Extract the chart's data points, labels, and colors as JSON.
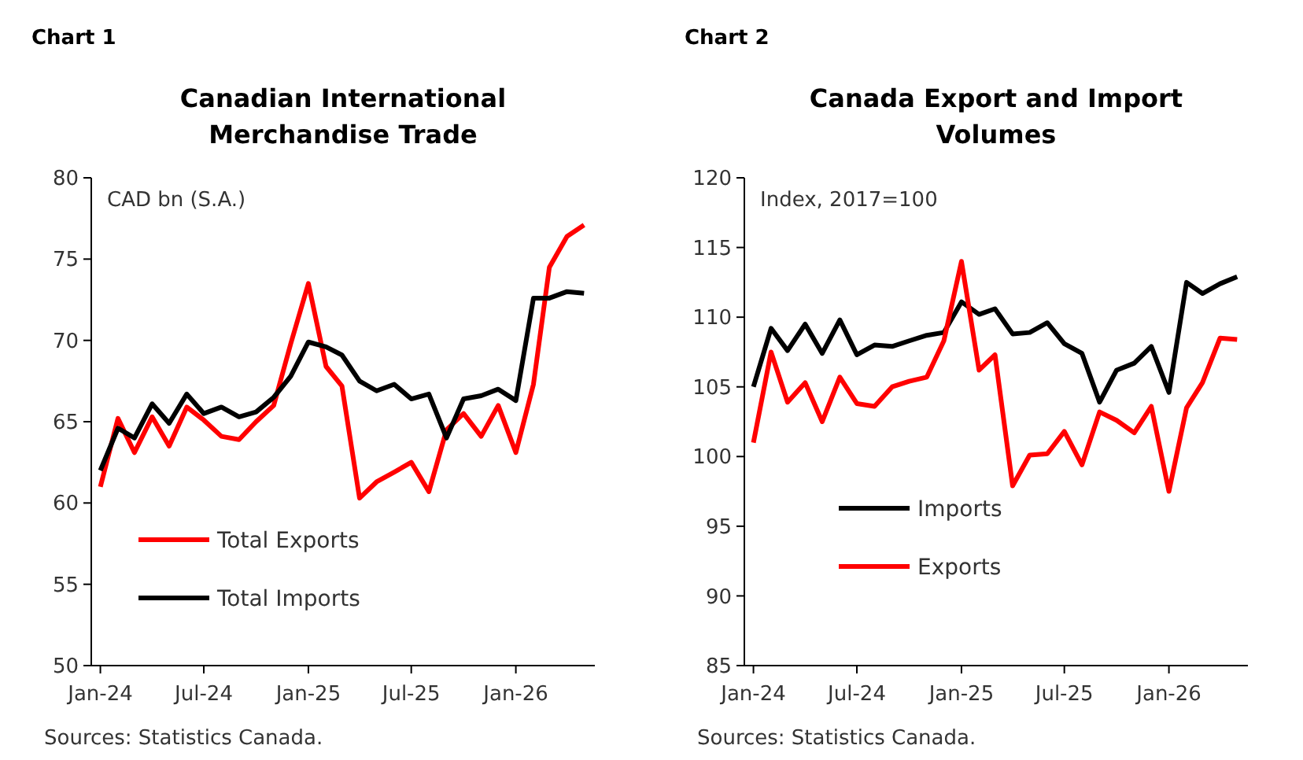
{
  "chart_data": [
    {
      "type": "line",
      "title": "Canadian International Merchandise Trade",
      "ylabel": "CAD bn (S.A.)",
      "annotations": [
        "Chart 1",
        "Sources: Statistics Canada."
      ],
      "x": [
        "2024-01",
        "2024-02",
        "2024-03",
        "2024-04",
        "2024-05",
        "2024-06",
        "2024-07",
        "2024-08",
        "2024-09",
        "2024-10",
        "2024-11",
        "2024-12",
        "2025-01",
        "2025-02",
        "2025-03",
        "2025-04",
        "2025-05",
        "2025-06",
        "2025-07",
        "2025-08",
        "2025-09",
        "2025-10",
        "2025-11",
        "2025-12",
        "2026-01",
        "2026-02",
        "2026-03",
        "2026-04",
        "2026-05"
      ],
      "series": [
        {
          "name": "Total Exports",
          "color": "#ff0000",
          "values": [
            61.0,
            65.2,
            63.1,
            65.3,
            63.5,
            65.9,
            65.1,
            64.1,
            63.9,
            65.0,
            66.0,
            69.8,
            73.5,
            68.4,
            67.2,
            60.3,
            61.3,
            61.9,
            62.5,
            60.7,
            64.5,
            65.5,
            64.1,
            66.0,
            63.1,
            67.3,
            74.5,
            76.4,
            77.1
          ]
        },
        {
          "name": "Total Imports",
          "color": "#000000",
          "values": [
            62.0,
            64.6,
            64.0,
            66.1,
            64.9,
            66.7,
            65.5,
            65.9,
            65.3,
            65.6,
            66.5,
            67.8,
            69.9,
            69.6,
            69.1,
            67.5,
            66.9,
            67.3,
            66.4,
            66.7,
            64.0,
            66.4,
            66.6,
            67.0,
            66.3,
            72.6,
            72.6,
            73.0,
            72.9
          ]
        }
      ],
      "xlim": [
        "2023-12-16",
        "2026-05-20"
      ],
      "xticks": [
        {
          "value": "2024-01",
          "label": "Jan-24"
        },
        {
          "value": "2024-07",
          "label": "Jul-24"
        },
        {
          "value": "2025-01",
          "label": "Jan-25"
        },
        {
          "value": "2025-07",
          "label": "Jul-25"
        },
        {
          "value": "2026-01",
          "label": "Jan-26"
        }
      ],
      "ylim": [
        50,
        80
      ],
      "yticks": [
        50,
        55,
        60,
        65,
        70,
        75,
        80
      ],
      "grid": false,
      "legend": "bottom left",
      "marker": "none",
      "line_style": "solid"
    },
    {
      "type": "line",
      "title": "Canada Export and Import Volumes",
      "ylabel": "Index, 2017=100",
      "annotations": [
        "Chart 2",
        "Sources: Statistics Canada."
      ],
      "x": [
        "2024-01",
        "2024-02",
        "2024-03",
        "2024-04",
        "2024-05",
        "2024-06",
        "2024-07",
        "2024-08",
        "2024-09",
        "2024-10",
        "2024-11",
        "2024-12",
        "2025-01",
        "2025-02",
        "2025-03",
        "2025-04",
        "2025-05",
        "2025-06",
        "2025-07",
        "2025-08",
        "2025-09",
        "2025-10",
        "2025-11",
        "2025-12",
        "2026-01",
        "2026-02",
        "2026-03",
        "2026-04",
        "2026-05"
      ],
      "series": [
        {
          "name": "Imports",
          "color": "#000000",
          "values": [
            105.0,
            109.2,
            107.6,
            109.5,
            107.4,
            109.8,
            107.3,
            108.0,
            107.9,
            108.3,
            108.7,
            108.9,
            111.1,
            110.2,
            110.6,
            108.8,
            108.9,
            109.6,
            108.1,
            107.4,
            103.9,
            106.2,
            106.7,
            107.9,
            104.6,
            112.5,
            111.7,
            112.4,
            112.9
          ]
        },
        {
          "name": "Exports",
          "color": "#ff0000",
          "values": [
            101.0,
            107.5,
            103.9,
            105.3,
            102.5,
            105.7,
            103.8,
            103.6,
            105.0,
            105.4,
            105.7,
            108.3,
            114.0,
            106.2,
            107.3,
            97.9,
            100.1,
            100.2,
            101.8,
            99.4,
            103.2,
            102.6,
            101.7,
            103.6,
            97.5,
            103.5,
            105.3,
            108.5,
            108.4
          ]
        }
      ],
      "xlim": [
        "2023-12-16",
        "2026-05-20"
      ],
      "xticks": [
        {
          "value": "2024-01",
          "label": "Jan-24"
        },
        {
          "value": "2024-07",
          "label": "Jul-24"
        },
        {
          "value": "2025-01",
          "label": "Jan-25"
        },
        {
          "value": "2025-07",
          "label": "Jul-25"
        },
        {
          "value": "2026-01",
          "label": "Jan-26"
        }
      ],
      "ylim": [
        85,
        120
      ],
      "yticks": [
        85,
        90,
        95,
        100,
        105,
        110,
        115,
        120
      ],
      "grid": false,
      "legend": "bottom",
      "marker": "none",
      "line_style": "solid"
    }
  ]
}
